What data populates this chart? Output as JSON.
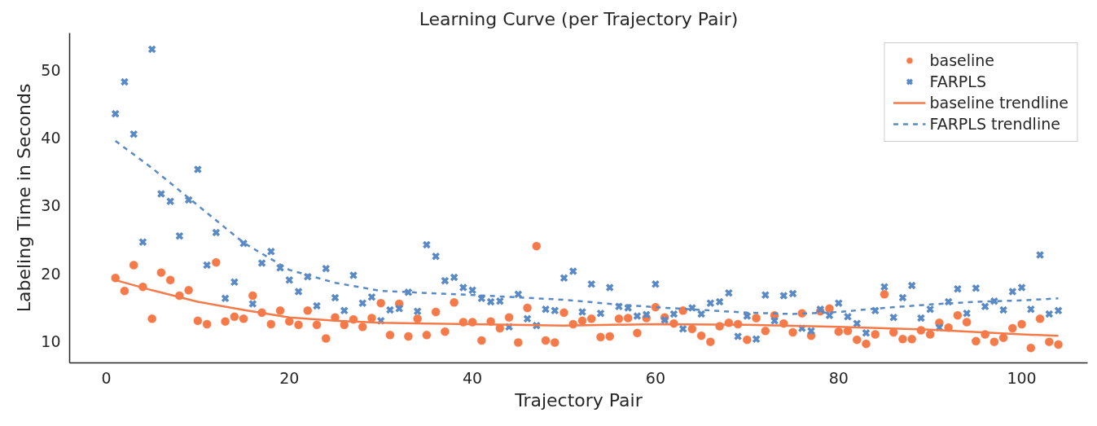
{
  "chart_data": {
    "type": "scatter",
    "title": "Learning Curve (per Trajectory Pair)",
    "xlabel": "Trajectory Pair",
    "ylabel": "Labeling Time in Seconds",
    "xlim": [
      -4,
      107.2
    ],
    "ylim": [
      6.8,
      55.4
    ],
    "xticks": [
      0,
      20,
      40,
      60,
      80,
      100
    ],
    "yticks": [
      10,
      20,
      30,
      40,
      50
    ],
    "grid": false,
    "legend": "top right",
    "series": [
      {
        "name": "baseline",
        "marker": "circle",
        "color": "#f47a4a",
        "x": [
          1,
          2,
          3,
          4,
          5,
          6,
          7,
          8,
          9,
          10,
          11,
          12,
          13,
          14,
          15,
          16,
          17,
          18,
          19,
          20,
          21,
          22,
          23,
          24,
          25,
          26,
          27,
          28,
          29,
          30,
          31,
          32,
          33,
          34,
          35,
          36,
          37,
          38,
          39,
          40,
          41,
          42,
          43,
          44,
          45,
          46,
          47,
          48,
          49,
          50,
          51,
          52,
          53,
          54,
          55,
          56,
          57,
          58,
          59,
          60,
          61,
          62,
          63,
          64,
          65,
          66,
          67,
          68,
          69,
          70,
          71,
          72,
          73,
          74,
          75,
          76,
          77,
          78,
          79,
          80,
          81,
          82,
          83,
          84,
          85,
          86,
          87,
          88,
          89,
          90,
          91,
          92,
          93,
          94,
          95,
          96,
          97,
          98,
          99,
          100,
          101,
          102,
          103,
          104
        ],
        "values": [
          19.3,
          17.4,
          21.2,
          18.0,
          13.3,
          20.1,
          19.0,
          16.7,
          17.5,
          13.0,
          12.5,
          21.6,
          12.9,
          13.6,
          13.3,
          16.7,
          14.2,
          12.5,
          14.5,
          12.9,
          12.4,
          14.5,
          12.4,
          10.4,
          13.5,
          12.4,
          13.2,
          12.1,
          13.4,
          15.6,
          10.9,
          15.5,
          10.7,
          13.3,
          10.9,
          14.3,
          11.4,
          15.7,
          12.8,
          12.8,
          10.1,
          12.9,
          11.9,
          13.5,
          9.8,
          14.9,
          24.0,
          10.1,
          9.8,
          14.2,
          12.5,
          13.0,
          13.3,
          10.6,
          10.7,
          13.3,
          13.4,
          11.2,
          13.4,
          15.0,
          13.5,
          12.6,
          14.5,
          11.8,
          10.8,
          9.9,
          12.2,
          12.7,
          12.5,
          10.2,
          13.4,
          11.5,
          13.8,
          12.6,
          11.3,
          14.1,
          10.8,
          14.4,
          14.8,
          11.4,
          11.5,
          10.2,
          9.6,
          11.0,
          16.9,
          11.3,
          10.3,
          10.3,
          11.6,
          11.0,
          12.7,
          12.0,
          13.8,
          12.8,
          10.0,
          11.0,
          9.9,
          10.5,
          11.9,
          12.5,
          9.0,
          13.3,
          9.9,
          9.5
        ]
      },
      {
        "name": "FARPLS",
        "marker": "cross",
        "color": "#5a8ac6",
        "x": [
          1,
          2,
          3,
          4,
          5,
          6,
          7,
          8,
          9,
          10,
          11,
          12,
          13,
          14,
          15,
          16,
          17,
          18,
          19,
          20,
          21,
          22,
          23,
          24,
          25,
          26,
          27,
          28,
          29,
          30,
          31,
          32,
          33,
          34,
          35,
          36,
          37,
          38,
          39,
          40,
          41,
          42,
          43,
          44,
          45,
          46,
          47,
          48,
          49,
          50,
          51,
          52,
          53,
          54,
          55,
          56,
          57,
          58,
          59,
          60,
          61,
          62,
          63,
          64,
          65,
          66,
          67,
          68,
          69,
          70,
          71,
          72,
          73,
          74,
          75,
          76,
          77,
          78,
          79,
          80,
          81,
          82,
          83,
          84,
          85,
          86,
          87,
          88,
          89,
          90,
          91,
          92,
          93,
          94,
          95,
          96,
          97,
          98,
          99,
          100,
          101,
          102,
          103,
          104
        ],
        "values": [
          43.5,
          48.2,
          40.5,
          24.6,
          53.0,
          31.7,
          30.6,
          25.5,
          30.8,
          35.3,
          21.2,
          26.0,
          16.3,
          18.7,
          24.4,
          15.5,
          21.5,
          23.2,
          20.8,
          19.0,
          17.3,
          19.5,
          15.2,
          20.7,
          16.4,
          14.5,
          19.7,
          15.6,
          16.5,
          13.0,
          14.6,
          14.8,
          17.2,
          14.4,
          24.2,
          22.5,
          18.9,
          19.4,
          17.9,
          17.5,
          16.3,
          15.8,
          15.9,
          12.1,
          16.9,
          13.3,
          12.3,
          14.7,
          14.5,
          19.3,
          20.3,
          14.3,
          18.4,
          14.1,
          17.9,
          15.1,
          14.9,
          13.7,
          13.9,
          18.4,
          13.1,
          14.0,
          11.8,
          14.9,
          14.0,
          15.6,
          15.8,
          17.1,
          10.7,
          13.7,
          10.3,
          16.8,
          13.0,
          16.7,
          17.0,
          11.9,
          11.5,
          14.7,
          13.8,
          15.6,
          13.6,
          12.6,
          11.2,
          14.5,
          18.0,
          13.5,
          16.4,
          18.2,
          13.4,
          14.7,
          12.0,
          15.8,
          17.7,
          14.1,
          17.8,
          15.1,
          15.9,
          14.6,
          17.3,
          17.9,
          14.7,
          22.7,
          14.0,
          14.5
        ]
      },
      {
        "name": "baseline trendline",
        "type": "line",
        "line_style": "solid",
        "color": "#f47a4a",
        "x": [
          1,
          5,
          10,
          15,
          20,
          25,
          30,
          40,
          50,
          60,
          70,
          80,
          90,
          100,
          104
        ],
        "values": [
          19.0,
          17.5,
          15.8,
          14.6,
          13.5,
          13.0,
          12.7,
          12.5,
          12.3,
          12.5,
          12.4,
          12.1,
          11.7,
          11.0,
          10.8
        ]
      },
      {
        "name": "FARPLS trendline",
        "type": "line",
        "line_style": "dashed",
        "color": "#5a8ac6",
        "x": [
          1,
          5,
          10,
          15,
          20,
          25,
          30,
          40,
          50,
          55,
          60,
          70,
          75,
          80,
          85,
          90,
          95,
          100,
          104
        ],
        "values": [
          39.5,
          35.5,
          30.0,
          24.5,
          20.5,
          18.6,
          17.4,
          16.8,
          16.1,
          15.5,
          15.0,
          14.2,
          14.0,
          14.3,
          14.9,
          15.4,
          15.8,
          16.0,
          16.3
        ]
      }
    ]
  }
}
